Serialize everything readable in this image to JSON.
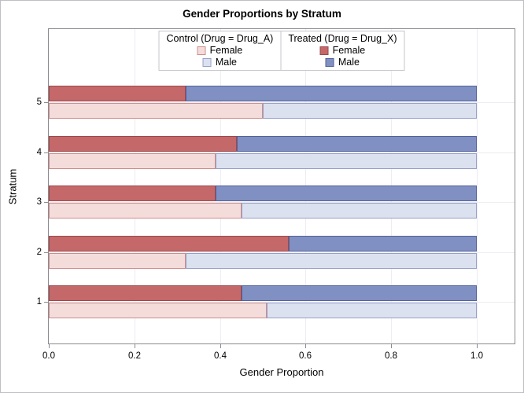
{
  "colors": {
    "treated_female_fill": "#C5686A",
    "treated_female_border": "#9A4A4D",
    "treated_male_fill": "#8090C2",
    "treated_male_border": "#54619A",
    "control_female_fill": "#F4DCDB",
    "control_female_border": "#CD8E8C",
    "control_male_fill": "#DCE1F0",
    "control_male_border": "#96A0C9",
    "gridline": "#EDEDF2",
    "axis_frame": "#8B8B90"
  },
  "legend": {
    "groups": [
      {
        "title": "Control (Drug = Drug_A)",
        "entries": [
          {
            "label": "Female",
            "swatch": "control_female"
          },
          {
            "label": "Male",
            "swatch": "control_male"
          }
        ]
      },
      {
        "title": "Treated (Drug = Drug_X)",
        "entries": [
          {
            "label": "Female",
            "swatch": "treated_female"
          },
          {
            "label": "Male",
            "swatch": "treated_male"
          }
        ]
      }
    ]
  },
  "chart_data": {
    "type": "bar",
    "orientation": "horizontal",
    "stacked": true,
    "title": "Gender Proportions by Stratum",
    "xlabel": "Gender Proportion",
    "ylabel": "Stratum",
    "xlim": [
      0,
      1.09
    ],
    "xticks": [
      0,
      0.2,
      0.4,
      0.6,
      0.8,
      1.0
    ],
    "xtick_labels": [
      "0.0",
      "0.2",
      "0.4",
      "0.6",
      "0.8",
      "1.0"
    ],
    "categories": [
      "1",
      "2",
      "3",
      "4",
      "5"
    ],
    "bar_total": 1.0,
    "grid": true,
    "legend_position": "top-center",
    "series": [
      {
        "name": "Female",
        "group": "Treated (Drug = Drug_X)",
        "color_key": "treated_female",
        "values": [
          0.45,
          0.56,
          0.39,
          0.44,
          0.32
        ]
      },
      {
        "name": "Male",
        "group": "Treated (Drug = Drug_X)",
        "color_key": "treated_male",
        "values": [
          0.55,
          0.44,
          0.61,
          0.56,
          0.68
        ]
      },
      {
        "name": "Female",
        "group": "Control (Drug = Drug_A)",
        "color_key": "control_female",
        "values": [
          0.51,
          0.32,
          0.45,
          0.39,
          0.5
        ]
      },
      {
        "name": "Male",
        "group": "Control (Drug = Drug_A)",
        "color_key": "control_male",
        "values": [
          0.49,
          0.68,
          0.55,
          0.61,
          0.5
        ]
      }
    ]
  }
}
